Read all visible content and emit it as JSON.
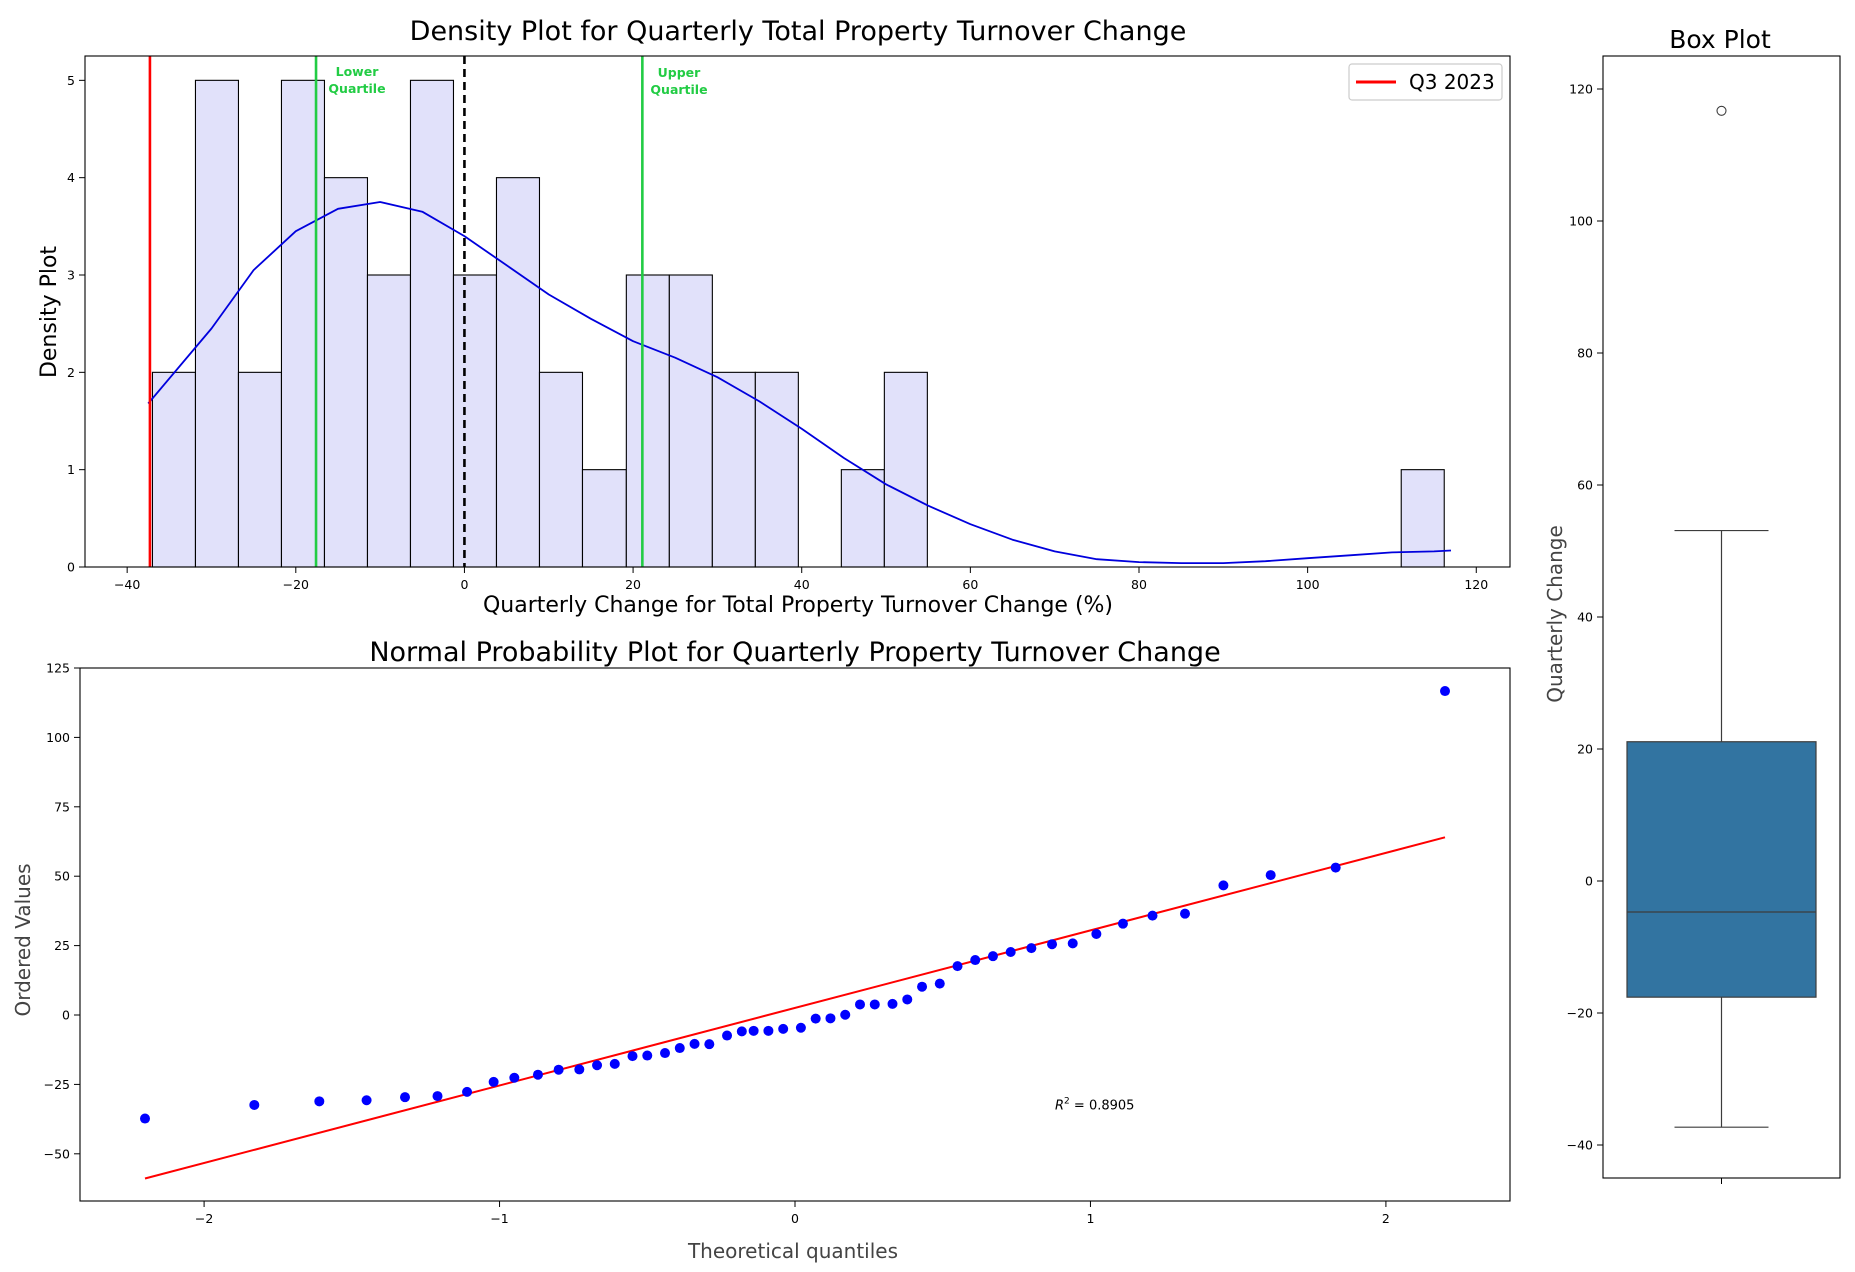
{
  "chart_data": [
    {
      "type": "histogram",
      "title": "Density Plot for Quarterly Total Property Turnover Change",
      "xlabel": "Quarterly Change for Total Property Turnover Change (%)",
      "ylabel": "Density Plot",
      "xlim": [
        -45,
        124
      ],
      "ylim": [
        0,
        5.25
      ],
      "xticks": [
        -40,
        -20,
        0,
        20,
        40,
        60,
        80,
        100,
        120
      ],
      "yticks": [
        0,
        1,
        2,
        3,
        4,
        5
      ],
      "grid": false,
      "legend": {
        "position": "top-right",
        "entries": [
          {
            "label": "Q3 2023",
            "color": "#ff0000"
          }
        ]
      },
      "bins": [
        {
          "x0": -37.0,
          "x1": -31.9,
          "count": 2
        },
        {
          "x0": -31.9,
          "x1": -26.8,
          "count": 5
        },
        {
          "x0": -26.8,
          "x1": -21.7,
          "count": 2
        },
        {
          "x0": -21.7,
          "x1": -16.6,
          "count": 5
        },
        {
          "x0": -16.6,
          "x1": -11.5,
          "count": 4
        },
        {
          "x0": -11.5,
          "x1": -6.4,
          "count": 3
        },
        {
          "x0": -6.4,
          "x1": -1.3,
          "count": 5
        },
        {
          "x0": -1.3,
          "x1": 3.8,
          "count": 3
        },
        {
          "x0": 3.8,
          "x1": 8.9,
          "count": 4
        },
        {
          "x0": 8.9,
          "x1": 14.0,
          "count": 2
        },
        {
          "x0": 14.0,
          "x1": 19.2,
          "count": 1
        },
        {
          "x0": 19.2,
          "x1": 24.3,
          "count": 3
        },
        {
          "x0": 24.3,
          "x1": 29.4,
          "count": 3
        },
        {
          "x0": 29.4,
          "x1": 34.5,
          "count": 2
        },
        {
          "x0": 34.5,
          "x1": 39.6,
          "count": 2
        },
        {
          "x0": 44.7,
          "x1": 49.8,
          "count": 1
        },
        {
          "x0": 49.8,
          "x1": 54.9,
          "count": 2
        },
        {
          "x0": 111.1,
          "x1": 116.2,
          "count": 1
        }
      ],
      "kde": {
        "x": [
          -37.5,
          -30,
          -25,
          -20,
          -15,
          -10,
          -5,
          0,
          5,
          10,
          15,
          20,
          25,
          30,
          35,
          40,
          45,
          50,
          55,
          60,
          65,
          70,
          75,
          80,
          85,
          90,
          95,
          100,
          105,
          110,
          115,
          117
        ],
        "y": [
          1.68,
          2.45,
          3.05,
          3.45,
          3.68,
          3.75,
          3.65,
          3.4,
          3.1,
          2.8,
          2.55,
          2.32,
          2.15,
          1.95,
          1.7,
          1.42,
          1.12,
          0.85,
          0.63,
          0.44,
          0.28,
          0.16,
          0.08,
          0.05,
          0.04,
          0.04,
          0.06,
          0.09,
          0.12,
          0.15,
          0.16,
          0.17
        ]
      },
      "vlines": [
        {
          "x": -37.3,
          "color": "#ff0000",
          "style": "solid",
          "label": "Q3 2023"
        },
        {
          "x": -17.6,
          "color": "#22cc44",
          "style": "solid",
          "label": "Lower Quartile"
        },
        {
          "x": 0,
          "color": "#000000",
          "style": "dashed"
        },
        {
          "x": 21.1,
          "color": "#22cc44",
          "style": "solid",
          "label": "Upper Quartile"
        }
      ],
      "annotations": {
        "lower": [
          "Lower",
          "Quartile"
        ],
        "upper": [
          "Upper",
          "Quartile"
        ]
      },
      "colors": {
        "bar_fill": "#e1e1fa",
        "bar_edge": "#000000",
        "kde": "#0000dd"
      }
    },
    {
      "type": "scatter",
      "title": "Normal Probability Plot for Quarterly Property Turnover Change",
      "xlabel": "Theoretical quantiles",
      "ylabel": "Ordered Values",
      "xlim": [
        -2.42,
        2.42
      ],
      "ylim": [
        -67,
        125
      ],
      "xticks": [
        -2,
        -1,
        0,
        1,
        2
      ],
      "yticks": [
        -50,
        -25,
        0,
        25,
        50,
        75,
        100,
        125
      ],
      "grid": false,
      "points_x": [
        -2.2,
        -1.83,
        -1.61,
        -1.45,
        -1.32,
        -1.21,
        -1.11,
        -1.02,
        -0.95,
        -0.87,
        -0.8,
        -0.73,
        -0.67,
        -0.61,
        -0.55,
        -0.5,
        -0.44,
        -0.39,
        -0.34,
        -0.29,
        -0.23,
        -0.18,
        -0.14,
        -0.09,
        -0.04,
        0.02,
        0.07,
        0.12,
        0.17,
        0.22,
        0.27,
        0.33,
        0.38,
        0.43,
        0.49,
        0.55,
        0.61,
        0.67,
        0.73,
        0.8,
        0.87,
        0.94,
        1.02,
        1.11,
        1.21,
        1.32,
        1.45,
        1.61,
        1.83,
        2.2
      ],
      "points_y": [
        -37.3,
        -32.4,
        -31.1,
        -30.7,
        -29.6,
        -29.2,
        -27.7,
        -24.1,
        -22.6,
        -21.5,
        -19.7,
        -19.6,
        -18.1,
        -17.6,
        -14.8,
        -14.6,
        -13.7,
        -11.9,
        -10.4,
        -10.5,
        -7.4,
        -5.9,
        -5.7,
        -5.7,
        -5.0,
        -4.6,
        -1.3,
        -1.2,
        0.1,
        3.8,
        3.8,
        4.0,
        5.6,
        10.2,
        11.3,
        17.6,
        19.8,
        21.2,
        22.7,
        24.1,
        25.5,
        25.8,
        29.2,
        32.9,
        35.8,
        36.5,
        46.7,
        50.4,
        53.1,
        116.7
      ],
      "fit_line": {
        "x": [
          -2.2,
          2.2
        ],
        "y": [
          -58.9,
          64.0
        ],
        "color": "#ff0000"
      },
      "annotation_prefix": "R",
      "annotation_power": "2",
      "annotation_value": " = 0.8905",
      "annotation_pos": {
        "x": 0.88,
        "y": -34
      },
      "colors": {
        "points": "#0000ff"
      }
    },
    {
      "type": "box",
      "title": "Box Plot",
      "ylabel": "Quarterly Change",
      "ylim": [
        -45,
        125
      ],
      "yticks": [
        -40,
        -20,
        0,
        20,
        40,
        60,
        80,
        100,
        120
      ],
      "stats": {
        "whisker_low": -37.3,
        "q1": -17.6,
        "median": -4.7,
        "q3": 21.1,
        "whisker_high": 53.1,
        "outliers": [
          116.7
        ]
      },
      "colors": {
        "box": "#3274a1",
        "lines": "#3c3c3c"
      }
    }
  ]
}
